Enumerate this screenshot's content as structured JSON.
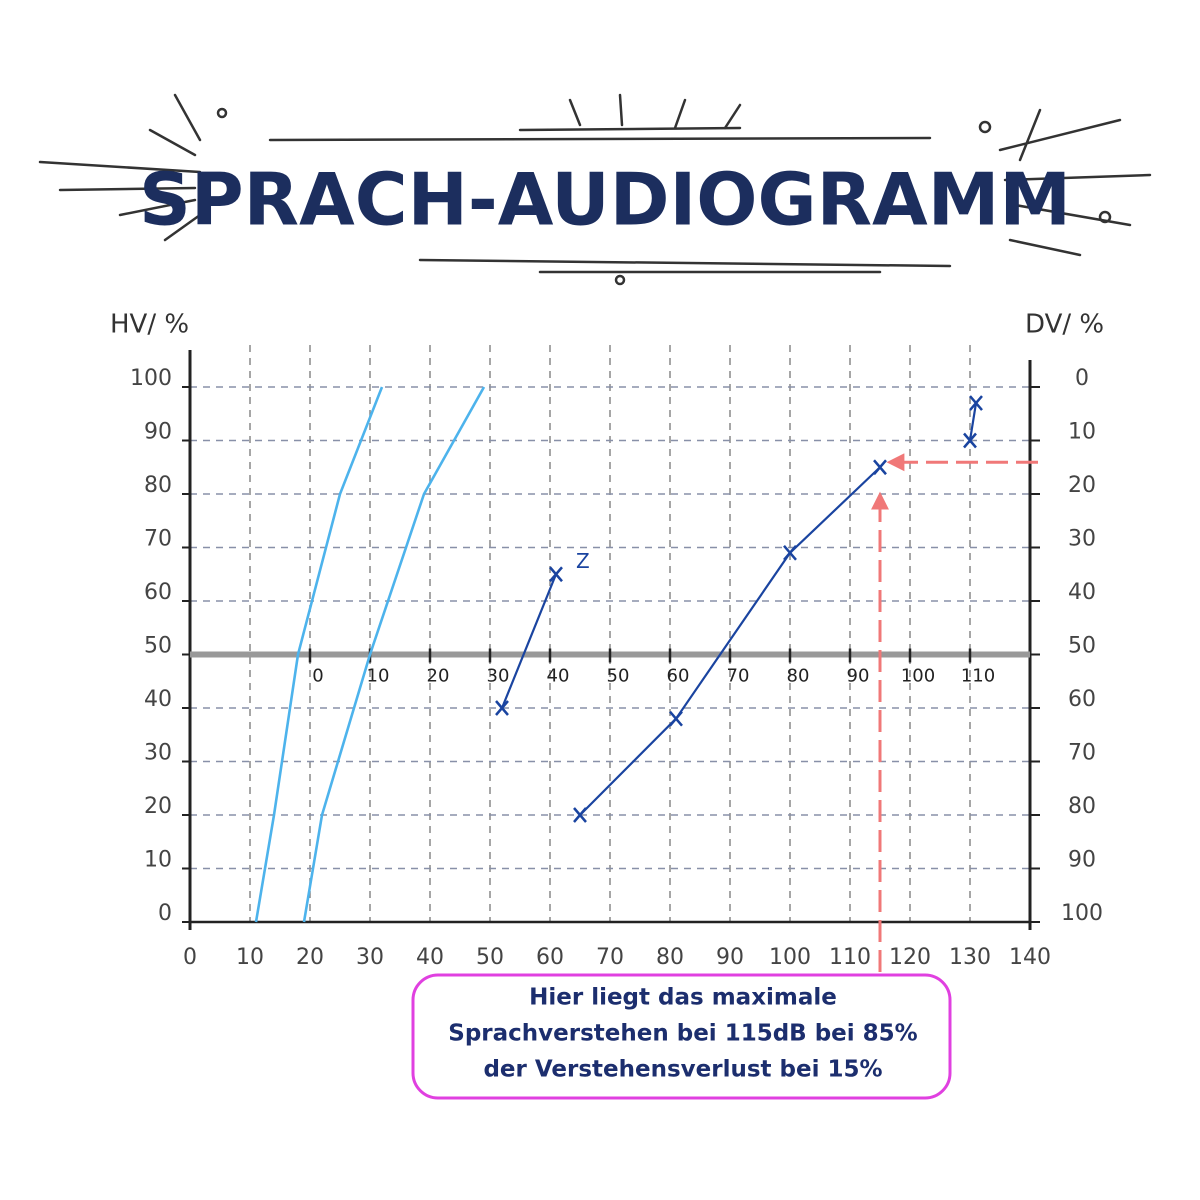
{
  "chart_data": {
    "type": "line",
    "title": "SPRACH-AUDIOGRAMM",
    "ylabel": "HV/ %",
    "y2label": "DV/ %",
    "xlim": [
      0,
      140
    ],
    "xticks": [
      0,
      10,
      20,
      30,
      40,
      50,
      60,
      70,
      80,
      90,
      100,
      110,
      120,
      130,
      140
    ],
    "ylim": [
      0,
      100
    ],
    "yticks": [
      0,
      10,
      20,
      30,
      40,
      50,
      60,
      70,
      80,
      90,
      100
    ],
    "y2lim": [
      100,
      0
    ],
    "y2ticks": [
      0,
      10,
      20,
      30,
      40,
      50,
      60,
      70,
      80,
      90,
      100
    ],
    "x2lim": [
      -20,
      120
    ],
    "x2ticks": [
      0,
      10,
      20,
      30,
      40,
      50,
      60,
      70,
      80,
      90,
      100,
      110
    ],
    "x2level": 50,
    "grid": true,
    "series": [
      {
        "color": "#4db3ec",
        "markers": false,
        "x": [
          11,
          14,
          18,
          25,
          32
        ],
        "values": [
          0,
          20,
          50,
          80,
          100
        ]
      },
      {
        "color": "#4db3ec",
        "markers": false,
        "x": [
          19,
          22,
          30,
          39,
          49
        ],
        "values": [
          0,
          20,
          50,
          80,
          100
        ]
      },
      {
        "color": "#1a44a0",
        "markers": true,
        "label": "Z",
        "x": [
          52,
          61
        ],
        "values": [
          40,
          65
        ]
      },
      {
        "color": "#1a44a0",
        "markers": true,
        "x": [
          65,
          81,
          100,
          115
        ],
        "values": [
          20,
          38,
          69,
          85
        ]
      },
      {
        "color": "#1a44a0",
        "markers": true,
        "x": [
          130,
          131
        ],
        "values": [
          90,
          97
        ]
      }
    ],
    "reference": {
      "x": 115,
      "y": 85,
      "color": "#f07878"
    },
    "annotation": [
      "Hier liegt das maximale",
      "Sprachverstehen bei 115dB bei 85%",
      "der Verstehensverlust bei 15%"
    ]
  }
}
